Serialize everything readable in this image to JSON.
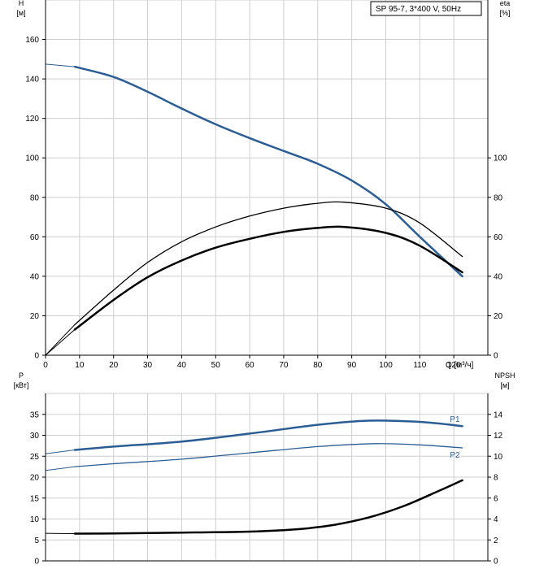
{
  "chart_data": [
    {
      "type": "line",
      "legend_box": "SP 95-7, 3*400 V, 50Hz",
      "x_label": "Q [м³/ч]",
      "x_ticks": [
        0,
        10,
        20,
        30,
        40,
        50,
        60,
        70,
        80,
        90,
        100,
        110,
        120
      ],
      "xlim": [
        0,
        130
      ],
      "left_axis": {
        "label": [
          "H",
          "[м]"
        ],
        "ylim": [
          0,
          180
        ],
        "ticks": [
          0,
          20,
          40,
          60,
          80,
          100,
          120,
          140,
          160
        ]
      },
      "right_axis": {
        "label": [
          "eta",
          "[%]"
        ],
        "ylim": [
          0,
          180
        ],
        "ticks": [
          0,
          20,
          40,
          60,
          80,
          100
        ]
      },
      "grid": true,
      "series": [
        {
          "key": "H",
          "axis": "left",
          "color": "#2b5d95",
          "width": 2.5,
          "extrapolated": [
            [
              0,
              147.5
            ],
            [
              8.6,
              146.2
            ]
          ],
          "points": [
            [
              8.6,
              146.2
            ],
            [
              20,
              141
            ],
            [
              30,
              133.5
            ],
            [
              40,
              125
            ],
            [
              50,
              117
            ],
            [
              60,
              110
            ],
            [
              70,
              103.5
            ],
            [
              80,
              97
            ],
            [
              90,
              88.5
            ],
            [
              100,
              76.5
            ],
            [
              110,
              60
            ],
            [
              122.5,
              40
            ]
          ]
        },
        {
          "key": "eta_pump",
          "axis": "right",
          "color": "#000000",
          "width": 1.3,
          "extrapolated": [
            [
              0,
              0
            ],
            [
              8.6,
              15.5
            ]
          ],
          "points": [
            [
              8.6,
              15.5
            ],
            [
              20,
              33
            ],
            [
              30,
              47
            ],
            [
              40,
              57.5
            ],
            [
              50,
              65
            ],
            [
              60,
              70.5
            ],
            [
              70,
              74.5
            ],
            [
              80,
              77
            ],
            [
              88,
              77.5
            ],
            [
              100,
              74.5
            ],
            [
              110,
              67
            ],
            [
              122.5,
              50
            ]
          ]
        },
        {
          "key": "eta_total",
          "axis": "right",
          "color": "#000000",
          "width": 2.5,
          "extrapolated": [
            [
              0,
              0
            ],
            [
              8.6,
              13
            ]
          ],
          "points": [
            [
              8.6,
              13
            ],
            [
              20,
              28
            ],
            [
              30,
              39.5
            ],
            [
              40,
              48
            ],
            [
              50,
              54.5
            ],
            [
              60,
              59
            ],
            [
              70,
              62.5
            ],
            [
              80,
              64.5
            ],
            [
              88,
              65
            ],
            [
              100,
              62
            ],
            [
              110,
              55.5
            ],
            [
              122.5,
              42
            ]
          ]
        }
      ]
    },
    {
      "type": "line",
      "x_label": "",
      "xlim": [
        0,
        130
      ],
      "left_axis": {
        "label": [
          "P",
          "[кВт]"
        ],
        "ylim": [
          0,
          40
        ],
        "ticks": [
          0,
          5,
          10,
          15,
          20,
          25,
          30,
          35
        ]
      },
      "right_axis": {
        "label": [
          "NPSH",
          "[м]"
        ],
        "ylim": [
          0,
          16
        ],
        "ticks": [
          0,
          2,
          4,
          6,
          8,
          10,
          12,
          14
        ]
      },
      "grid": true,
      "series": [
        {
          "key": "P1",
          "name": "P1",
          "axis": "left",
          "color": "#2b5d95",
          "width": 2.5,
          "extrapolated": [
            [
              0,
              25.6
            ],
            [
              8.6,
              26.5
            ]
          ],
          "points": [
            [
              8.6,
              26.5
            ],
            [
              20,
              27.3
            ],
            [
              40,
              28.5
            ],
            [
              60,
              30.4
            ],
            [
              80,
              32.5
            ],
            [
              95,
              33.5
            ],
            [
              110,
              33.2
            ],
            [
              122.5,
              32.2
            ]
          ]
        },
        {
          "key": "P2",
          "name": "P2",
          "axis": "left",
          "color": "#2b5d95",
          "width": 1.3,
          "extrapolated": [
            [
              0,
              21.6
            ],
            [
              8.6,
              22.5
            ]
          ],
          "points": [
            [
              8.6,
              22.5
            ],
            [
              20,
              23.2
            ],
            [
              40,
              24.3
            ],
            [
              60,
              25.8
            ],
            [
              80,
              27.3
            ],
            [
              97,
              28
            ],
            [
              110,
              27.7
            ],
            [
              122.5,
              27
            ]
          ]
        },
        {
          "key": "NPSH",
          "axis": "right",
          "color": "#000000",
          "width": 2.5,
          "extrapolated": [
            [
              0,
              2.63
            ],
            [
              8.6,
              2.6
            ]
          ],
          "points": [
            [
              8.6,
              2.6
            ],
            [
              20,
              2.62
            ],
            [
              40,
              2.7
            ],
            [
              60,
              2.8
            ],
            [
              75,
              3.05
            ],
            [
              85,
              3.45
            ],
            [
              95,
              4.15
            ],
            [
              105,
              5.2
            ],
            [
              115,
              6.6
            ],
            [
              122.5,
              7.7
            ]
          ]
        }
      ]
    }
  ]
}
